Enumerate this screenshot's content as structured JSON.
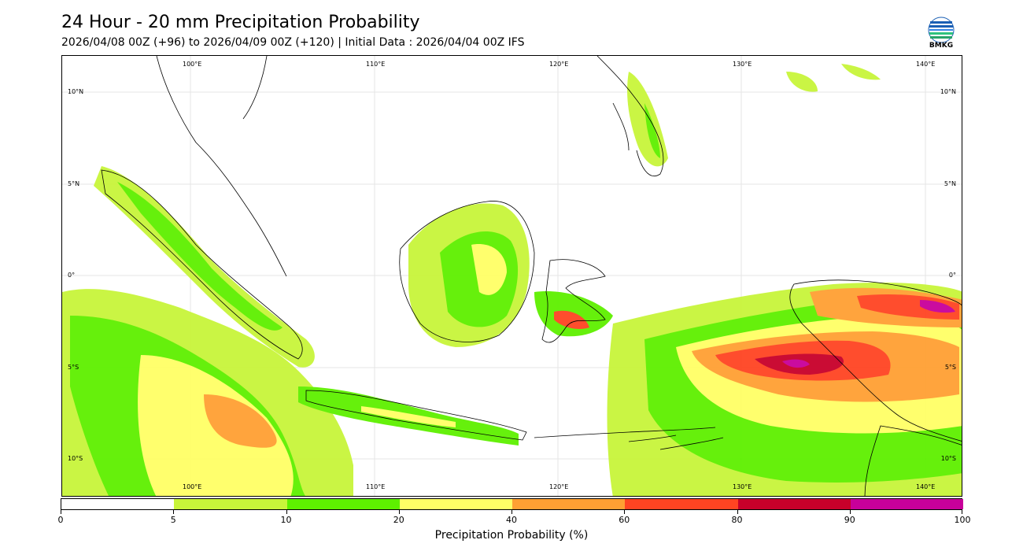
{
  "header": {
    "title": "24 Hour - 20 mm Precipitation Probability",
    "subtitle": "2026/04/08 00Z (+96) to 2026/04/09 00Z (+120) | Initial Data : 2026/04/04 00Z IFS",
    "logo_text": "BMKG"
  },
  "map": {
    "lon_labels": [
      "100°E",
      "110°E",
      "120°E",
      "130°E",
      "140°E"
    ],
    "lat_labels": [
      "10°N",
      "5°N",
      "0°",
      "5°S",
      "10°S"
    ],
    "lon_range": [
      93,
      142
    ],
    "lat_range": [
      -12,
      12
    ]
  },
  "colorbar": {
    "title": "Precipitation Probability (%)",
    "ticks": [
      "0",
      "5",
      "10",
      "20",
      "40",
      "60",
      "80",
      "90",
      "100"
    ],
    "colors": [
      "#ffffff",
      "#c8f53a",
      "#5ef000",
      "#ffff66",
      "#ffa033",
      "#ff4422",
      "#c8002a",
      "#c8009a"
    ]
  },
  "colors": {
    "low": "#c8f53a",
    "moderate": "#5ef000",
    "medium": "#ffff66",
    "high": "#ffa033",
    "very_high": "#ff4422",
    "extreme": "#c8002a",
    "max": "#c8009a"
  }
}
